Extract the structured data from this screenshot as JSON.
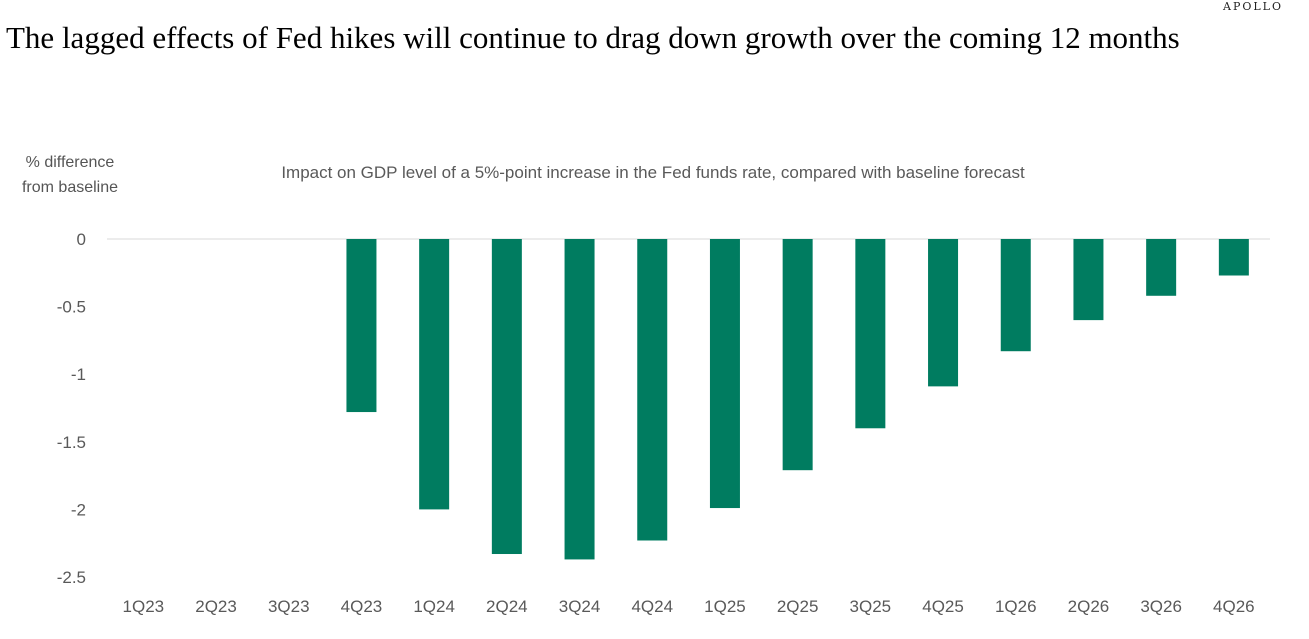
{
  "brand": "APOLLO",
  "title": "The lagged effects of Fed hikes will continue to drag down growth over the coming 12 months",
  "chart_data": {
    "type": "bar",
    "subtitle": "Impact on GDP level of a 5%-point increase in the Fed funds rate, compared with baseline forecast",
    "ylabel": [
      "% difference",
      "from baseline"
    ],
    "xlabel": "",
    "categories": [
      "1Q23",
      "2Q23",
      "3Q23",
      "4Q23",
      "1Q24",
      "2Q24",
      "3Q24",
      "4Q24",
      "1Q25",
      "2Q25",
      "3Q25",
      "4Q25",
      "1Q26",
      "2Q26",
      "3Q26",
      "4Q26"
    ],
    "values": [
      0,
      0,
      0,
      -1.28,
      -2.0,
      -2.33,
      -2.37,
      -2.23,
      -1.99,
      -1.71,
      -1.4,
      -1.09,
      -0.83,
      -0.6,
      -0.42,
      -0.27
    ],
    "ylim": [
      -2.5,
      0
    ],
    "yticks": [
      0,
      -0.5,
      -1,
      -1.5,
      -2,
      -2.5
    ],
    "ytick_labels": [
      "0",
      "-0.5",
      "-1",
      "-1.5",
      "-2",
      "-2.5"
    ],
    "grid": false,
    "legend": "none",
    "bar_color": "#007c60"
  }
}
